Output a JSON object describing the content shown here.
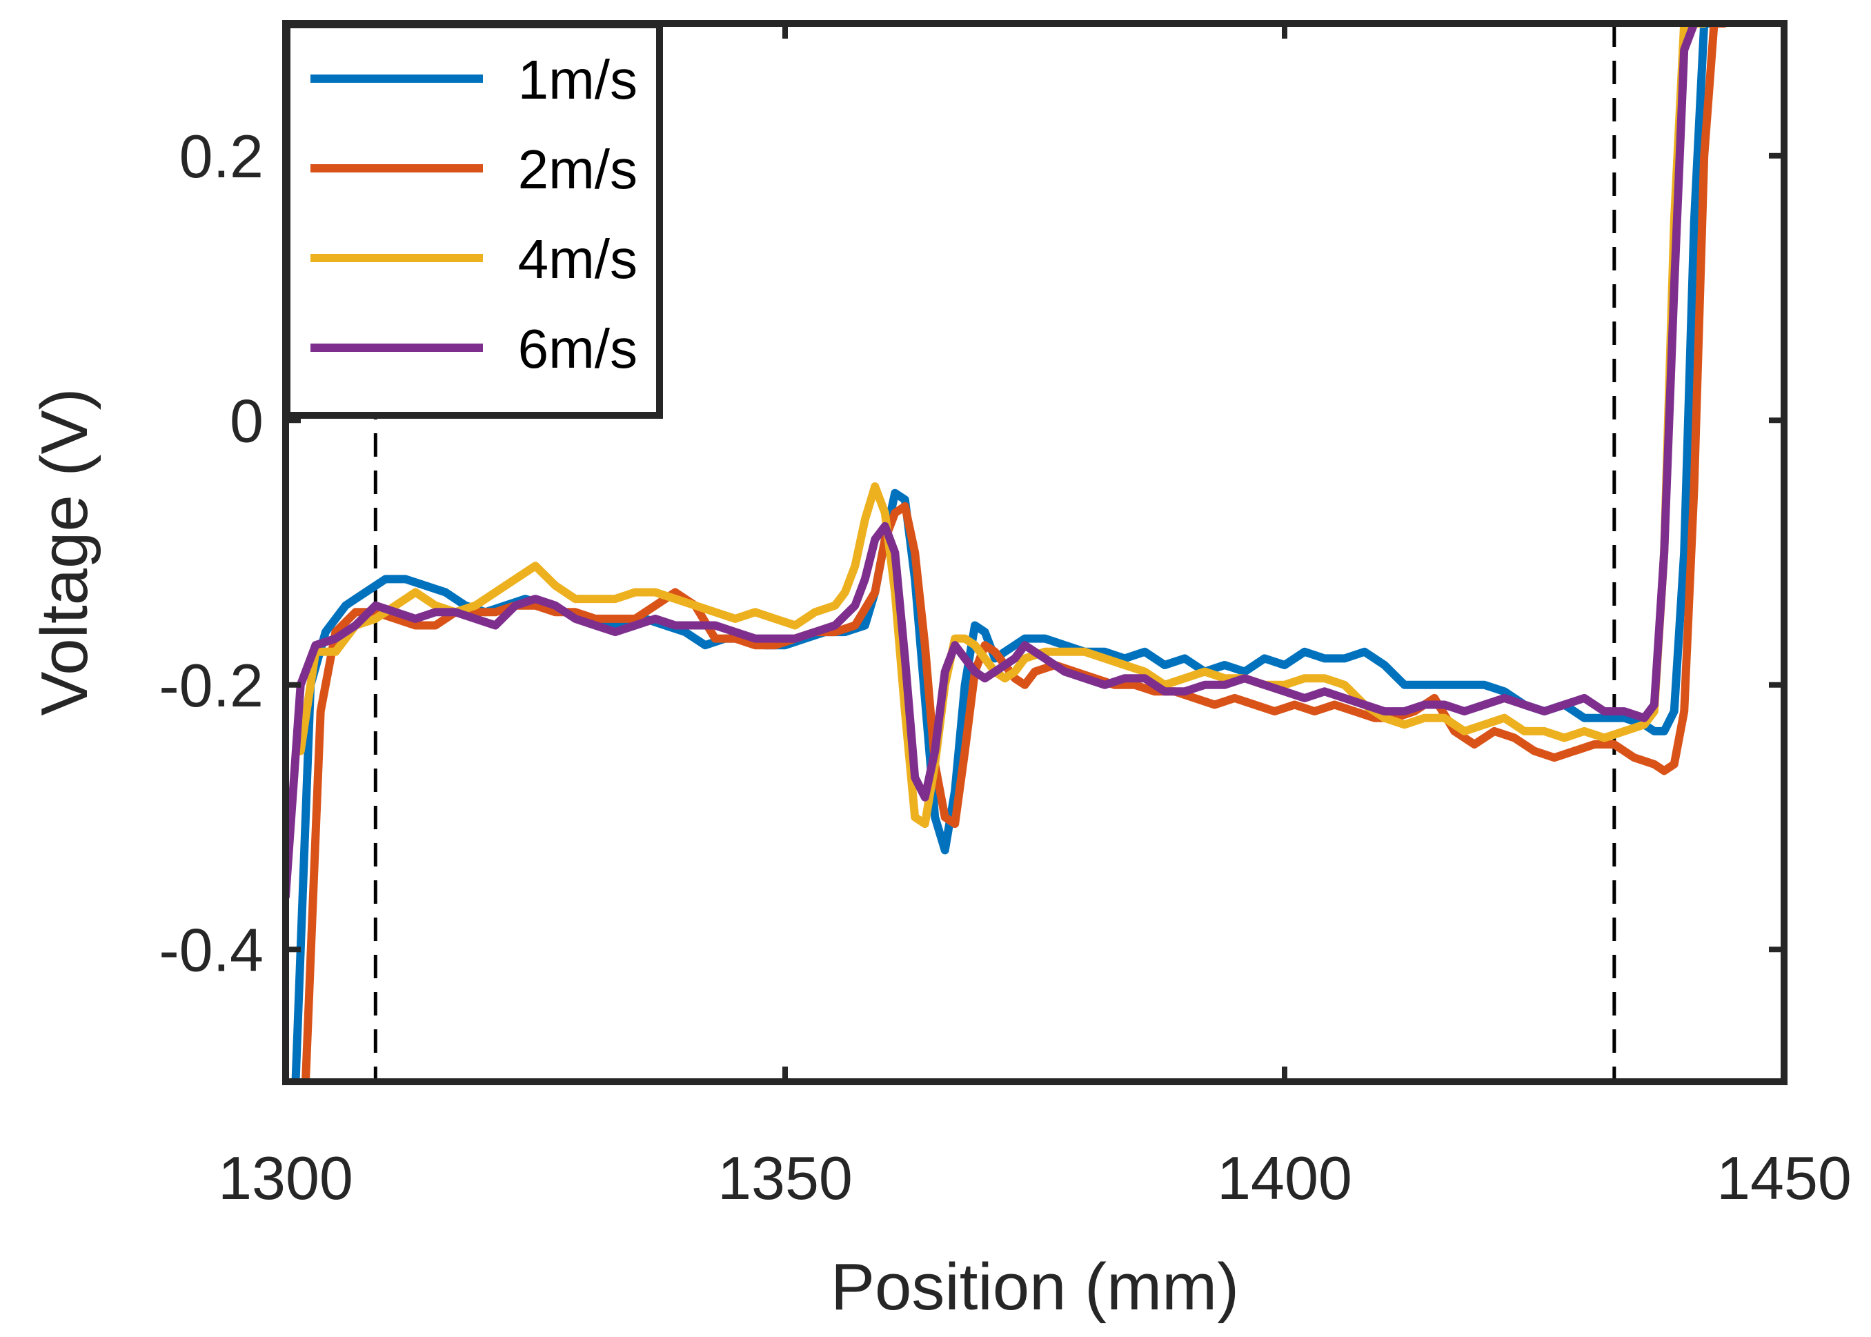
{
  "chart_data": {
    "type": "line",
    "title": "",
    "xlabel": "Position (mm)",
    "ylabel": "Voltage (V)",
    "xlim": [
      1300,
      1450
    ],
    "ylim": [
      -0.5,
      0.3
    ],
    "xticks": [
      1300,
      1350,
      1400,
      1450
    ],
    "xtick_labels": [
      "1300",
      "1350",
      "1400",
      "1450"
    ],
    "yticks": [
      -0.4,
      -0.2,
      0,
      0.2
    ],
    "ytick_labels": [
      "-0.4",
      "-0.2",
      "0",
      "0.2"
    ],
    "grid": false,
    "legend_position": "top-left",
    "reference_lines": [
      {
        "orientation": "vertical",
        "x": 1309,
        "style": "dashed",
        "color": "#000000"
      },
      {
        "orientation": "vertical",
        "x": 1433,
        "style": "dashed",
        "color": "#000000"
      }
    ],
    "series": [
      {
        "name": "1m/s",
        "color": "#0072BD",
        "x": [
          1301.0,
          1302.5,
          1304,
          1306,
          1308,
          1310,
          1312,
          1314,
          1316,
          1318,
          1320,
          1322,
          1324,
          1326,
          1328,
          1330,
          1332,
          1334,
          1336,
          1338,
          1340,
          1342,
          1344,
          1346,
          1348,
          1350,
          1352,
          1354,
          1356,
          1358,
          1359,
          1360,
          1361,
          1362,
          1363,
          1364,
          1365,
          1366,
          1367,
          1368,
          1369,
          1370,
          1371,
          1372,
          1373,
          1374,
          1376,
          1378,
          1380,
          1382,
          1384,
          1386,
          1388,
          1390,
          1392,
          1394,
          1396,
          1398,
          1400,
          1402,
          1404,
          1406,
          1408,
          1410,
          1412,
          1414,
          1416,
          1418,
          1420,
          1422,
          1424,
          1426,
          1428,
          1430,
          1432,
          1434,
          1436,
          1437,
          1438,
          1439,
          1440,
          1441,
          1442,
          1443
        ],
        "y": [
          -0.5,
          -0.2,
          -0.16,
          -0.14,
          -0.13,
          -0.12,
          -0.12,
          -0.125,
          -0.13,
          -0.14,
          -0.145,
          -0.14,
          -0.135,
          -0.14,
          -0.145,
          -0.15,
          -0.155,
          -0.155,
          -0.15,
          -0.155,
          -0.16,
          -0.17,
          -0.165,
          -0.165,
          -0.17,
          -0.17,
          -0.165,
          -0.16,
          -0.16,
          -0.155,
          -0.13,
          -0.09,
          -0.055,
          -0.06,
          -0.12,
          -0.21,
          -0.3,
          -0.325,
          -0.28,
          -0.2,
          -0.155,
          -0.16,
          -0.18,
          -0.175,
          -0.17,
          -0.165,
          -0.165,
          -0.17,
          -0.175,
          -0.175,
          -0.18,
          -0.175,
          -0.185,
          -0.18,
          -0.19,
          -0.185,
          -0.19,
          -0.18,
          -0.185,
          -0.175,
          -0.18,
          -0.18,
          -0.175,
          -0.185,
          -0.2,
          -0.2,
          -0.2,
          -0.2,
          -0.2,
          -0.205,
          -0.215,
          -0.22,
          -0.215,
          -0.225,
          -0.225,
          -0.225,
          -0.23,
          -0.235,
          -0.235,
          -0.22,
          -0.1,
          0.15,
          0.3,
          0.3
        ]
      },
      {
        "name": "2m/s",
        "color": "#D95319",
        "x": [
          1302.0,
          1303.5,
          1305,
          1307,
          1309,
          1311,
          1313,
          1315,
          1317,
          1319,
          1321,
          1323,
          1325,
          1327,
          1329,
          1331,
          1333,
          1335,
          1337,
          1339,
          1341,
          1343,
          1345,
          1347,
          1349,
          1351,
          1353,
          1355,
          1357,
          1359,
          1360,
          1361,
          1362,
          1363,
          1364,
          1365,
          1366,
          1367,
          1368,
          1369,
          1370,
          1371,
          1372,
          1373,
          1374,
          1375,
          1377,
          1379,
          1381,
          1383,
          1385,
          1387,
          1389,
          1391,
          1393,
          1395,
          1397,
          1399,
          1401,
          1403,
          1405,
          1407,
          1409,
          1411,
          1413,
          1415,
          1417,
          1419,
          1421,
          1423,
          1425,
          1427,
          1429,
          1431,
          1433,
          1435,
          1437,
          1438,
          1439,
          1440,
          1441,
          1442,
          1443,
          1444
        ],
        "y": [
          -0.5,
          -0.22,
          -0.16,
          -0.145,
          -0.145,
          -0.15,
          -0.155,
          -0.155,
          -0.145,
          -0.145,
          -0.145,
          -0.14,
          -0.14,
          -0.145,
          -0.145,
          -0.15,
          -0.15,
          -0.15,
          -0.14,
          -0.13,
          -0.14,
          -0.165,
          -0.165,
          -0.17,
          -0.17,
          -0.165,
          -0.16,
          -0.16,
          -0.155,
          -0.13,
          -0.09,
          -0.07,
          -0.065,
          -0.1,
          -0.17,
          -0.26,
          -0.3,
          -0.305,
          -0.25,
          -0.19,
          -0.17,
          -0.175,
          -0.185,
          -0.195,
          -0.2,
          -0.19,
          -0.185,
          -0.19,
          -0.195,
          -0.2,
          -0.2,
          -0.205,
          -0.205,
          -0.21,
          -0.215,
          -0.21,
          -0.215,
          -0.22,
          -0.215,
          -0.22,
          -0.215,
          -0.22,
          -0.225,
          -0.225,
          -0.22,
          -0.21,
          -0.235,
          -0.245,
          -0.235,
          -0.24,
          -0.25,
          -0.255,
          -0.25,
          -0.245,
          -0.245,
          -0.255,
          -0.26,
          -0.265,
          -0.26,
          -0.22,
          -0.05,
          0.2,
          0.3,
          0.3
        ]
      },
      {
        "name": "4m/s",
        "color": "#EDB120",
        "x": [
          1301.5,
          1303,
          1305,
          1307,
          1309,
          1311,
          1313,
          1315,
          1317,
          1319,
          1321,
          1323,
          1325,
          1327,
          1329,
          1331,
          1333,
          1335,
          1337,
          1339,
          1341,
          1343,
          1345,
          1347,
          1349,
          1351,
          1353,
          1355,
          1356,
          1357,
          1358,
          1359,
          1360,
          1361,
          1362,
          1363,
          1364,
          1365,
          1366,
          1367,
          1368,
          1369,
          1370,
          1371,
          1372,
          1373,
          1374,
          1376,
          1378,
          1380,
          1382,
          1384,
          1386,
          1388,
          1390,
          1392,
          1394,
          1396,
          1398,
          1400,
          1402,
          1404,
          1406,
          1408,
          1410,
          1412,
          1414,
          1416,
          1418,
          1420,
          1422,
          1424,
          1426,
          1428,
          1430,
          1432,
          1434,
          1436,
          1437,
          1438,
          1439,
          1440,
          1441,
          1442
        ],
        "y": [
          -0.25,
          -0.175,
          -0.175,
          -0.155,
          -0.15,
          -0.14,
          -0.13,
          -0.14,
          -0.145,
          -0.14,
          -0.13,
          -0.12,
          -0.11,
          -0.125,
          -0.135,
          -0.135,
          -0.135,
          -0.13,
          -0.13,
          -0.135,
          -0.14,
          -0.145,
          -0.15,
          -0.145,
          -0.15,
          -0.155,
          -0.145,
          -0.14,
          -0.13,
          -0.11,
          -0.075,
          -0.05,
          -0.07,
          -0.13,
          -0.22,
          -0.3,
          -0.305,
          -0.26,
          -0.2,
          -0.165,
          -0.165,
          -0.17,
          -0.18,
          -0.19,
          -0.195,
          -0.19,
          -0.18,
          -0.175,
          -0.175,
          -0.175,
          -0.18,
          -0.185,
          -0.19,
          -0.2,
          -0.195,
          -0.19,
          -0.195,
          -0.195,
          -0.2,
          -0.2,
          -0.195,
          -0.195,
          -0.2,
          -0.215,
          -0.225,
          -0.23,
          -0.225,
          -0.225,
          -0.235,
          -0.23,
          -0.225,
          -0.235,
          -0.235,
          -0.24,
          -0.235,
          -0.24,
          -0.235,
          -0.23,
          -0.22,
          -0.1,
          0.15,
          0.3,
          0.3,
          0.3
        ]
      },
      {
        "name": "6m/s",
        "color": "#7E2F8E",
        "x": [
          1300.0,
          1301.5,
          1303,
          1305,
          1307,
          1309,
          1311,
          1313,
          1315,
          1317,
          1319,
          1321,
          1323,
          1325,
          1327,
          1329,
          1331,
          1333,
          1335,
          1337,
          1339,
          1341,
          1343,
          1345,
          1347,
          1349,
          1351,
          1353,
          1355,
          1357,
          1358,
          1359,
          1360,
          1361,
          1362,
          1363,
          1364,
          1365,
          1366,
          1367,
          1368,
          1369,
          1370,
          1371,
          1372,
          1373,
          1374,
          1376,
          1378,
          1380,
          1382,
          1384,
          1386,
          1388,
          1390,
          1392,
          1394,
          1396,
          1398,
          1400,
          1402,
          1404,
          1406,
          1408,
          1410,
          1412,
          1414,
          1416,
          1418,
          1420,
          1422,
          1424,
          1426,
          1428,
          1430,
          1432,
          1434,
          1436,
          1437,
          1438,
          1439,
          1440,
          1441
        ],
        "y": [
          -0.36,
          -0.2,
          -0.17,
          -0.165,
          -0.155,
          -0.14,
          -0.145,
          -0.15,
          -0.145,
          -0.145,
          -0.15,
          -0.155,
          -0.14,
          -0.135,
          -0.14,
          -0.15,
          -0.155,
          -0.16,
          -0.155,
          -0.15,
          -0.155,
          -0.155,
          -0.155,
          -0.16,
          -0.165,
          -0.165,
          -0.165,
          -0.16,
          -0.155,
          -0.14,
          -0.12,
          -0.09,
          -0.08,
          -0.1,
          -0.18,
          -0.27,
          -0.285,
          -0.25,
          -0.19,
          -0.17,
          -0.18,
          -0.19,
          -0.195,
          -0.19,
          -0.185,
          -0.18,
          -0.17,
          -0.18,
          -0.19,
          -0.195,
          -0.2,
          -0.195,
          -0.195,
          -0.205,
          -0.205,
          -0.2,
          -0.2,
          -0.195,
          -0.2,
          -0.205,
          -0.21,
          -0.205,
          -0.21,
          -0.215,
          -0.22,
          -0.22,
          -0.215,
          -0.215,
          -0.22,
          -0.215,
          -0.21,
          -0.215,
          -0.22,
          -0.215,
          -0.21,
          -0.22,
          -0.22,
          -0.225,
          -0.215,
          -0.1,
          0.1,
          0.28,
          0.3
        ]
      }
    ]
  }
}
